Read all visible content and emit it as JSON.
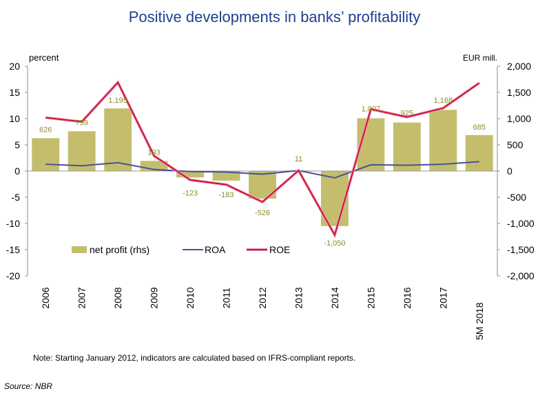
{
  "title": "Positive developments in banks’ profitability",
  "note": "Note: Starting January 2012, indicators are calculated based on IFRS-compliant reports.",
  "source": "Source: NBR",
  "colors": {
    "bar": "#c4be6c",
    "bar_label": "#8d8a2a",
    "roa": "#4a4f9c",
    "roe": "#d0103a",
    "title": "#1f3f8f"
  },
  "chart_data": {
    "type": "bar",
    "categories": [
      "2006",
      "2007",
      "2008",
      "2009",
      "2010",
      "2011",
      "2012",
      "2013",
      "2014",
      "2015",
      "2016",
      "2017",
      "5M 2018"
    ],
    "left_axis": {
      "label": "percent",
      "ylim": [
        -20,
        20
      ],
      "ticks": [
        "20",
        "15",
        "10",
        "5",
        "0",
        "-5",
        "-10",
        "-15",
        "-20"
      ]
    },
    "right_axis": {
      "label": "EUR mill.",
      "ylim": [
        -2000,
        2000
      ],
      "ticks": [
        "2,000",
        "1,500",
        "1,000",
        "500",
        "0",
        "-500",
        "-1,000",
        "-1,500",
        "-2,000"
      ]
    },
    "series": [
      {
        "name": "net profit (rhs)",
        "type": "bar",
        "axis": "right",
        "values": [
          626,
          759,
          1195,
          193,
          -123,
          -183,
          -526,
          11,
          -1050,
          1007,
          925,
          1168,
          685
        ],
        "labels": [
          "626",
          "759",
          "1,195",
          "193",
          "-123",
          "-183",
          "-526",
          "11",
          "-1,050",
          "1,007",
          "925",
          "1,168",
          "685"
        ]
      },
      {
        "name": "ROA",
        "type": "line",
        "axis": "left",
        "values": [
          1.3,
          1.0,
          1.6,
          0.3,
          -0.1,
          -0.2,
          -0.6,
          0.1,
          -1.3,
          1.2,
          1.1,
          1.3,
          1.8
        ]
      },
      {
        "name": "ROE",
        "type": "line",
        "axis": "left",
        "values": [
          10.2,
          9.4,
          16.9,
          2.9,
          -1.7,
          -2.6,
          -5.9,
          0.1,
          -12.2,
          11.8,
          10.3,
          12.0,
          16.8
        ]
      }
    ],
    "legend": {
      "placement": "lower-left inside plot"
    },
    "grid": false
  }
}
